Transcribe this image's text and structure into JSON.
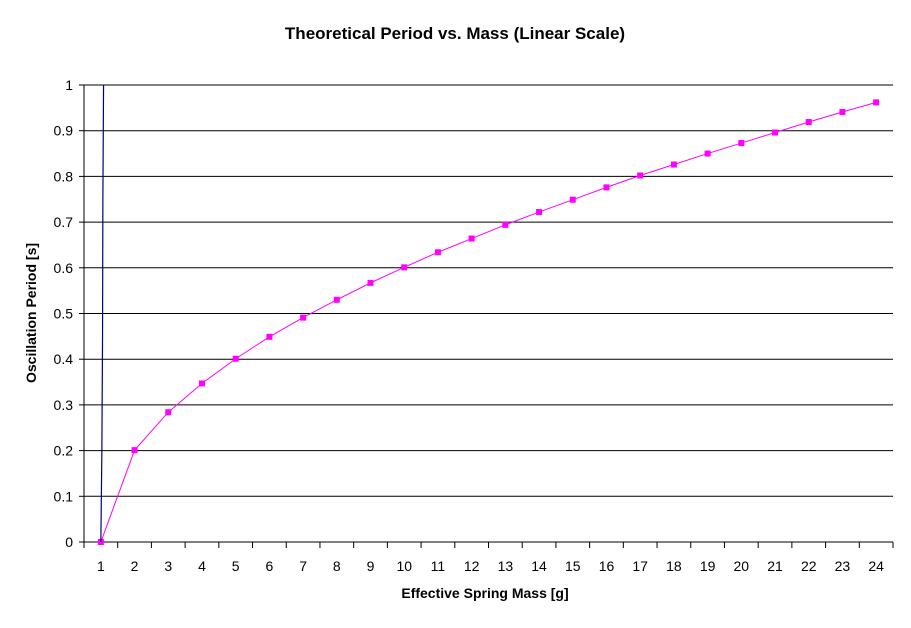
{
  "chart_data": {
    "type": "line",
    "title": "Theoretical Period vs. Mass (Linear Scale)",
    "xlabel": "Effective Spring Mass [g]",
    "ylabel": "Oscillation Period [s]",
    "categories": [
      "1",
      "2",
      "3",
      "4",
      "5",
      "6",
      "7",
      "8",
      "9",
      "10",
      "11",
      "12",
      "13",
      "14",
      "15",
      "16",
      "17",
      "18",
      "19",
      "20",
      "21",
      "22",
      "23",
      "24"
    ],
    "y_ticks": [
      "0",
      "0.1",
      "0.2",
      "0.3",
      "0.4",
      "0.5",
      "0.6",
      "0.7",
      "0.8",
      "0.9",
      "1"
    ],
    "ylim": [
      0,
      1
    ],
    "grid": "horizontal",
    "legend": "none",
    "series": [
      {
        "color": "#FF00FF",
        "marker": "square",
        "values": [
          0,
          0.201,
          0.284,
          0.347,
          0.401,
          0.449,
          0.491,
          0.53,
          0.567,
          0.601,
          0.634,
          0.664,
          0.694,
          0.722,
          0.749,
          0.776,
          0.802,
          0.826,
          0.85,
          0.873,
          0.896,
          0.919,
          0.941,
          0.962
        ]
      },
      {
        "color": "#000080",
        "marker": "none",
        "points": [
          {
            "x": 1.0,
            "y": 0
          },
          {
            "x": 1.03,
            "y": 0.2
          },
          {
            "x": 1.05,
            "y": 0.45
          },
          {
            "x": 1.06,
            "y": 0.75
          },
          {
            "x": 1.08,
            "y": 1.0
          }
        ]
      }
    ]
  }
}
